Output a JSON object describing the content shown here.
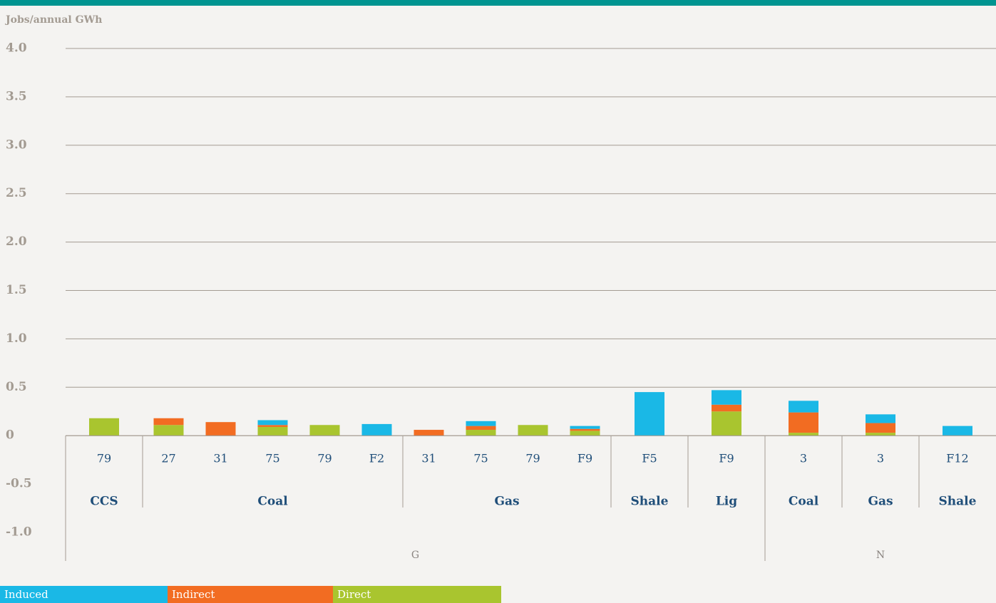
{
  "chart_data": {
    "type": "stacked_bar",
    "y_axis_label": "Jobs/annual GWh",
    "category_groups": [
      {
        "name": "G",
        "groups": [
          {
            "name": "CCS",
            "categories": [
              "79"
            ]
          },
          {
            "name": "Coal",
            "categories": [
              "27",
              "31",
              "75",
              "79",
              "F2"
            ]
          },
          {
            "name": "Gas",
            "categories": [
              "31",
              "75",
              "79",
              "F9"
            ]
          },
          {
            "name": "Shale",
            "categories": [
              "F5"
            ]
          },
          {
            "name": "Lig",
            "categories": [
              "F9"
            ]
          }
        ]
      },
      {
        "name": "N",
        "groups": [
          {
            "name": "Coal",
            "categories": [
              "3"
            ]
          },
          {
            "name": "Gas",
            "categories": [
              "3"
            ]
          },
          {
            "name": "Shale",
            "categories": [
              "F12"
            ]
          }
        ]
      }
    ],
    "series": [
      {
        "name": "Induced",
        "color": "#1ab8e6",
        "values": [
          0,
          0,
          0,
          0.05,
          0,
          0.12,
          0,
          0.05,
          0,
          0.03,
          0.45,
          0.15,
          0.12,
          0.09,
          0.1
        ]
      },
      {
        "name": "Indirect",
        "color": "#f26c22",
        "values": [
          0,
          0.07,
          0.14,
          0.02,
          0,
          0,
          0.06,
          0.04,
          0,
          0.02,
          0,
          0.07,
          0.21,
          0.1,
          0
        ]
      },
      {
        "name": "Direct",
        "color": "#a9c52f",
        "values": [
          0.18,
          0.11,
          0,
          0.09,
          0.11,
          0,
          0,
          0.06,
          0.11,
          0.05,
          0,
          0.25,
          0.03,
          0.03,
          0
        ]
      }
    ],
    "ylim": [
      -1,
      4
    ],
    "yticks": [
      {
        "value": 4,
        "label": "4.0"
      },
      3.5,
      {
        "value": 3,
        "label": "3.0"
      },
      2.5,
      {
        "value": 2,
        "label": "2.0"
      },
      1.5,
      {
        "value": 1,
        "label": "1.0"
      },
      0.5,
      0,
      -0.5,
      {
        "value": -1,
        "label": "-1.0"
      }
    ],
    "grid": true
  }
}
